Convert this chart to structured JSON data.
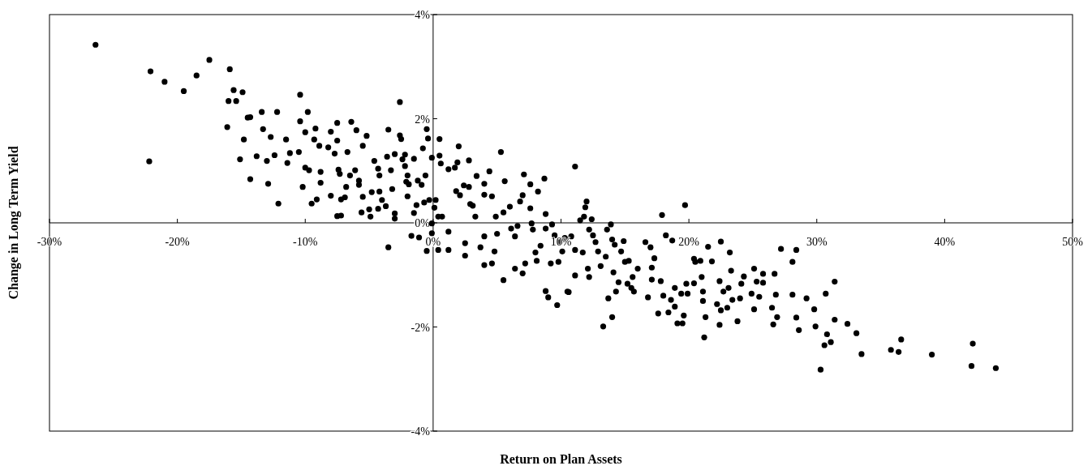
{
  "chart_data": {
    "type": "scatter",
    "xlabel": "Return on Plan Assets",
    "ylabel": "Change in Long Term Yield",
    "xlim": [
      -30,
      50
    ],
    "ylim": [
      -4,
      4
    ],
    "xticks": [
      {
        "value": -30,
        "label": "-30%"
      },
      {
        "value": -20,
        "label": "-20%"
      },
      {
        "value": -10,
        "label": "-10%"
      },
      {
        "value": 0,
        "label": "0%"
      },
      {
        "value": 10,
        "label": "10%"
      },
      {
        "value": 20,
        "label": "20%"
      },
      {
        "value": 30,
        "label": "30%"
      },
      {
        "value": 40,
        "label": "40%"
      },
      {
        "value": 50,
        "label": "50%"
      }
    ],
    "yticks": [
      {
        "value": -4,
        "label": "-4%"
      },
      {
        "value": -2,
        "label": "-2%"
      },
      {
        "value": 0,
        "label": "0%"
      },
      {
        "value": 2,
        "label": "2%"
      },
      {
        "value": 4,
        "label": "4%"
      }
    ],
    "marker": "circle",
    "series": [
      {
        "color": "#000000",
        "x": [
          -26.4,
          -22.1,
          -21.0,
          -19.5,
          -18.5,
          -17.5,
          -15.9,
          -22.2,
          -15.6,
          -14.9,
          -16.0,
          -15.4,
          -16.1,
          -14.8,
          -14.5,
          -14.3,
          -15.1,
          -14.3,
          -13.8,
          -13.4,
          -13.3,
          -13.0,
          -12.7,
          -12.9,
          -12.4,
          -12.2,
          -12.1,
          -11.5,
          -11.4,
          -11.2,
          -10.5,
          -10.4,
          -10.4,
          -10.2,
          -10.0,
          -9.8,
          -10.0,
          -9.7,
          -9.5,
          -9.3,
          -9.2,
          -9.1,
          -8.9,
          -8.8,
          -8.8,
          -8.2,
          -8.0,
          -8.0,
          -7.7,
          -7.5,
          -7.5,
          -7.4,
          -7.3,
          -7.2,
          -7.5,
          -7.2,
          -6.9,
          -6.8,
          -6.7,
          -6.4,
          -6.5,
          -6.1,
          -6.0,
          -5.8,
          -5.8,
          -5.6,
          -5.5,
          -5.5,
          -5.2,
          -5.0,
          -4.9,
          -4.8,
          -4.6,
          -4.3,
          -4.2,
          -4.3,
          -4.2,
          -4.0,
          -3.7,
          -3.6,
          -3.5,
          -3.5,
          -3.3,
          -3.2,
          -3.0,
          -3.0,
          -3.0,
          -2.6,
          -2.6,
          -2.5,
          -2.4,
          -2.2,
          -2.2,
          -2.1,
          -2.0,
          -1.9,
          -2.0,
          -1.7,
          -1.5,
          -1.5,
          -1.3,
          -1.2,
          -1.1,
          -0.9,
          -0.8,
          -0.7,
          -0.6,
          -0.5,
          -0.4,
          -0.3,
          -0.1,
          -0.1,
          -0.1,
          -0.5,
          0.5,
          0.5,
          0.6,
          0.2,
          0.1,
          0.4,
          0.7,
          1.2,
          1.7,
          2.0,
          1.9,
          1.8,
          2.1,
          2.4,
          2.8,
          2.8,
          2.9,
          3.1,
          3.4,
          3.3,
          4.0,
          4.0,
          4.4,
          4.6,
          4.0,
          2.5,
          2.5,
          3.7,
          4.0,
          4.6,
          1.2,
          1.2,
          0.4,
          4.8,
          4.9,
          5.0,
          5.3,
          5.6,
          5.5,
          5.5,
          6.0,
          6.1,
          6.4,
          6.4,
          6.6,
          6.8,
          7.0,
          7.1,
          7.0,
          7.2,
          7.6,
          7.6,
          7.7,
          7.8,
          8.2,
          8.0,
          8.1,
          8.4,
          8.7,
          8.8,
          8.8,
          8.8,
          9.0,
          9.2,
          9.3,
          9.5,
          9.7,
          9.8,
          9.9,
          10.1,
          10.3,
          10.5,
          10.6,
          10.8,
          11.1,
          11.1,
          11.1,
          11.5,
          11.7,
          11.8,
          12.0,
          11.9,
          12.1,
          12.2,
          12.2,
          12.4,
          12.5,
          12.7,
          12.9,
          13.1,
          13.3,
          13.5,
          13.6,
          13.7,
          13.9,
          14.0,
          14.1,
          14.0,
          14.2,
          14.3,
          14.5,
          14.7,
          14.9,
          15.0,
          15.2,
          15.3,
          15.5,
          15.6,
          15.7,
          16.0,
          16.6,
          16.8,
          17.0,
          17.1,
          17.1,
          17.3,
          17.6,
          17.8,
          17.9,
          18.0,
          18.2,
          18.4,
          18.6,
          18.7,
          18.9,
          18.9,
          19.1,
          19.5,
          19.6,
          19.7,
          19.8,
          19.4,
          19.9,
          20.4,
          20.4,
          20.5,
          20.9,
          21.0,
          21.1,
          21.1,
          21.2,
          21.3,
          21.5,
          21.8,
          22.2,
          22.4,
          22.4,
          22.5,
          22.5,
          22.7,
          23.0,
          23.1,
          23.2,
          23.3,
          23.4,
          23.8,
          24.0,
          24.1,
          24.3,
          24.9,
          25.1,
          25.1,
          25.3,
          25.5,
          25.8,
          25.8,
          26.5,
          26.6,
          26.7,
          26.8,
          26.9,
          27.2,
          28.1,
          28.1,
          28.4,
          28.4,
          28.6,
          29.2,
          29.8,
          29.9,
          30.3,
          30.6,
          30.7,
          30.8,
          31.1,
          31.4,
          31.4,
          32.4,
          33.1,
          33.5,
          35.8,
          36.4,
          36.6,
          39.0,
          42.1,
          42.2,
          44.0
        ],
        "values": [
          3.42,
          2.91,
          2.71,
          2.53,
          2.83,
          3.13,
          2.95,
          1.18,
          2.55,
          2.51,
          2.34,
          2.34,
          1.84,
          1.6,
          2.02,
          2.03,
          1.22,
          0.84,
          1.28,
          2.13,
          1.8,
          1.19,
          1.65,
          0.75,
          1.3,
          2.13,
          0.37,
          1.6,
          1.15,
          1.34,
          1.36,
          2.46,
          1.95,
          0.69,
          1.74,
          2.13,
          1.06,
          1.01,
          0.37,
          1.6,
          1.81,
          0.45,
          1.48,
          0.98,
          0.77,
          1.45,
          0.52,
          1.75,
          1.33,
          1.58,
          1.92,
          1.02,
          0.94,
          0.45,
          0.13,
          0.14,
          0.49,
          0.69,
          1.36,
          1.94,
          0.91,
          1.01,
          1.78,
          0.73,
          0.81,
          0.2,
          1.48,
          0.5,
          1.67,
          0.26,
          0.12,
          0.59,
          1.19,
          1.04,
          0.91,
          0.27,
          0.6,
          0.44,
          0.32,
          1.27,
          1.79,
          -0.47,
          1.01,
          0.65,
          0.08,
          0.18,
          1.32,
          2.32,
          1.68,
          1.61,
          1.22,
          1.31,
          1.09,
          0.79,
          0.91,
          0.74,
          0.51,
          -0.25,
          1.23,
          0.19,
          0.34,
          0.81,
          -0.28,
          0.73,
          1.43,
          0.39,
          0.91,
          1.8,
          1.62,
          0.44,
          1.25,
          -0.01,
          -0.2,
          -0.54,
          1.61,
          1.29,
          1.14,
          0.44,
          0.29,
          0.12,
          0.12,
          1.03,
          1.06,
          1.47,
          1.16,
          0.61,
          0.53,
          0.72,
          1.2,
          0.69,
          0.36,
          0.33,
          0.9,
          0.12,
          0.75,
          0.54,
          0.99,
          0.51,
          -0.26,
          -0.39,
          -0.63,
          -0.47,
          -0.81,
          -0.78,
          -0.52,
          -0.17,
          -0.52,
          -0.55,
          0.12,
          -0.21,
          1.36,
          0.8,
          0.2,
          -1.1,
          0.31,
          -0.11,
          -0.26,
          -0.88,
          -0.06,
          0.41,
          0.53,
          0.93,
          -0.97,
          -0.78,
          0.28,
          0.74,
          -0.01,
          -0.13,
          0.6,
          -0.57,
          -0.73,
          -0.44,
          0.85,
          0.17,
          -0.11,
          -1.31,
          -1.43,
          -0.78,
          -0.03,
          -0.24,
          -1.58,
          -0.75,
          -0.37,
          -0.55,
          -0.29,
          -1.32,
          -1.33,
          -0.26,
          -0.52,
          -1.01,
          1.08,
          0.05,
          -0.57,
          0.12,
          0.41,
          0.3,
          -0.88,
          -1.04,
          -0.13,
          0.07,
          -0.24,
          -0.37,
          -0.55,
          -0.83,
          -1.99,
          -0.65,
          -0.13,
          -1.45,
          -0.03,
          -1.81,
          -0.95,
          -0.32,
          -0.42,
          -1.32,
          -1.14,
          -0.55,
          -0.35,
          -0.75,
          -1.17,
          -0.73,
          -1.25,
          -1.04,
          -1.32,
          -0.88,
          -0.37,
          -1.43,
          -0.47,
          -0.86,
          -1.09,
          -0.68,
          -1.74,
          -1.12,
          0.15,
          -1.4,
          -0.24,
          -1.72,
          -1.48,
          -0.34,
          -1.61,
          -1.25,
          -1.93,
          -1.93,
          -1.78,
          0.34,
          -1.17,
          -1.36,
          -1.36,
          -1.16,
          -0.69,
          -0.75,
          -0.73,
          -1.04,
          -1.32,
          -1.5,
          -2.2,
          -1.81,
          -0.46,
          -0.74,
          -1.56,
          -1.12,
          -1.96,
          -1.68,
          -0.36,
          -1.32,
          -1.63,
          -1.25,
          -0.57,
          -0.92,
          -1.48,
          -1.89,
          -1.45,
          -1.17,
          -1.03,
          -1.36,
          -0.88,
          -1.66,
          -1.13,
          -1.42,
          -0.98,
          -1.15,
          -1.63,
          -1.95,
          -0.98,
          -1.38,
          -1.81,
          -0.5,
          -0.75,
          -1.38,
          -0.52,
          -1.82,
          -2.06,
          -1.45,
          -1.66,
          -1.99,
          -2.82,
          -2.35,
          -1.36,
          -2.14,
          -2.29,
          -1.13,
          -1.86,
          -1.94,
          -2.12,
          -2.52,
          -2.44,
          -2.48,
          -2.24,
          -2.53,
          -2.75,
          -2.32,
          -2.79
        ]
      }
    ]
  }
}
